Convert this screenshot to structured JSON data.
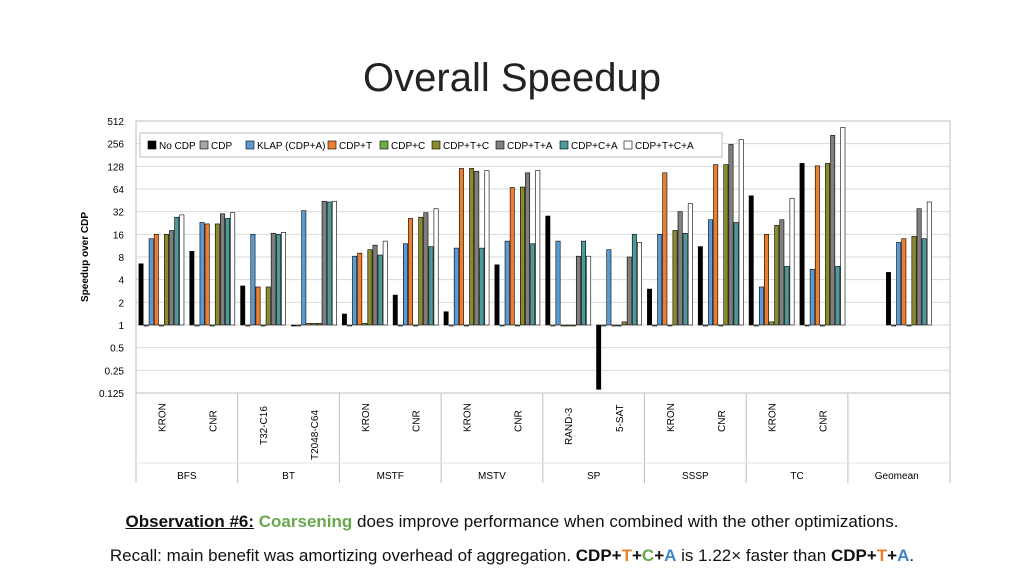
{
  "slide": {
    "title": "Overall Speedup",
    "observation_label": "Observation #6:",
    "observation_keyword": "Coarsening",
    "observation_rest": " does improve performance when combined with the other optimizations.",
    "recall_prefix": "Recall: main benefit was amortizing overhead of aggregation. ",
    "recall_cdp1": "CDP+",
    "recall_t1": "T",
    "recall_plus1": "+",
    "recall_c": "C",
    "recall_plus2": "+",
    "recall_a1": "A",
    "recall_mid": " is 1.22× faster than ",
    "recall_cdp2": "CDP+",
    "recall_t2": "T",
    "recall_plus3": "+",
    "recall_a2": "A",
    "recall_end": "."
  },
  "colors": {
    "keyword_green": "#6aa84f",
    "accent_orange": "#e4832f",
    "accent_blue": "#3d85c6"
  },
  "chart_data": {
    "type": "bar",
    "ylabel": "Speedup over CDP",
    "yscale": "log2",
    "ylim": [
      0.125,
      512
    ],
    "yticks": [
      "0.125",
      "0.25",
      "0.5",
      "1",
      "2",
      "4",
      "8",
      "16",
      "32",
      "64",
      "128",
      "256",
      "512"
    ],
    "grid": true,
    "legend_position": "top-inside",
    "groups": [
      {
        "label": "BFS",
        "datasets": [
          "KRON",
          "CNR"
        ]
      },
      {
        "label": "BT",
        "datasets": [
          "T32-C16",
          "T2048-C64"
        ]
      },
      {
        "label": "MSTF",
        "datasets": [
          "KRON",
          "CNR"
        ]
      },
      {
        "label": "MSTV",
        "datasets": [
          "KRON",
          "CNR"
        ]
      },
      {
        "label": "SP",
        "datasets": [
          "RAND-3",
          "5-SAT"
        ]
      },
      {
        "label": "SSSP",
        "datasets": [
          "KRON",
          "CNR"
        ]
      },
      {
        "label": "TC",
        "datasets": [
          "KRON",
          "CNR"
        ]
      },
      {
        "label": "Geomean",
        "datasets": [
          ""
        ]
      }
    ],
    "series": [
      {
        "name": "No CDP",
        "color": "#000000",
        "values": [
          6.5,
          9.5,
          3.3,
          1.0,
          1.4,
          2.5,
          1.5,
          6.3,
          28,
          0.14,
          3.0,
          11,
          52,
          140,
          5.0
        ]
      },
      {
        "name": "CDP",
        "color": "#a6a6a6",
        "values": [
          1,
          1,
          1,
          1,
          1,
          1,
          1,
          1,
          1,
          1,
          1,
          1,
          1,
          1,
          1
        ]
      },
      {
        "name": "KLAP (CDP+A)",
        "color": "#5b9bd5",
        "values": [
          14,
          23,
          16,
          33,
          8.2,
          12,
          10.5,
          13,
          13,
          10,
          16,
          25,
          3.2,
          5.5,
          12.5
        ]
      },
      {
        "name": "CDP+T",
        "color": "#ed7d31",
        "values": [
          16,
          22,
          3.2,
          1.05,
          9,
          26,
          120,
          67,
          1.0,
          1.0,
          105,
          135,
          16,
          130,
          14
        ]
      },
      {
        "name": "CDP+C",
        "color": "#70ad47",
        "values": [
          1,
          1,
          1,
          1.05,
          1.05,
          1,
          1,
          1,
          1.0,
          1.0,
          1,
          1,
          1.1,
          1,
          1
        ]
      },
      {
        "name": "CDP+T+C",
        "color": "#8a8a2e",
        "values": [
          16,
          22,
          3.2,
          1.05,
          10,
          27,
          120,
          68,
          1.0,
          1.1,
          18,
          135,
          21,
          140,
          15
        ]
      },
      {
        "name": "CDP+T+A",
        "color": "#7f7f7f",
        "values": [
          18,
          30,
          16.5,
          44,
          11.5,
          31,
          110,
          105,
          8.2,
          8,
          32,
          250,
          25,
          330,
          35
        ]
      },
      {
        "name": "CDP+C+A",
        "color": "#4e9a9a",
        "values": [
          27,
          26,
          16,
          43,
          8.5,
          11,
          10.5,
          12,
          13,
          16,
          16.5,
          23,
          6,
          6,
          14
        ]
      },
      {
        "name": "CDP+T+C+A",
        "color": "#ffffff",
        "values": [
          29,
          31,
          17,
          44,
          13,
          35,
          112,
          113,
          8.2,
          12.5,
          41,
          290,
          48,
          420,
          43
        ]
      }
    ]
  }
}
